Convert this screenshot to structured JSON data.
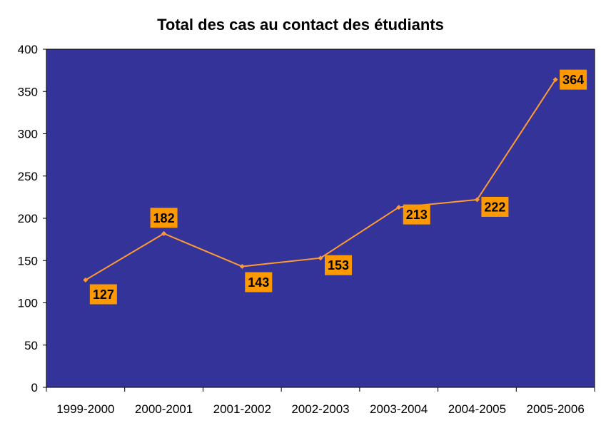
{
  "chart_data": {
    "type": "line",
    "title": "Total des cas au contact des étudiants",
    "categories": [
      "1999-2000",
      "2000-2001",
      "2001-2002",
      "2002-2003",
      "2003-2004",
      "2004-2005",
      "2005-2006"
    ],
    "series": [
      {
        "values": [
          127,
          182,
          143,
          153,
          213,
          222,
          364
        ]
      }
    ],
    "ylim": [
      0,
      400
    ],
    "yticks": [
      0,
      50,
      100,
      150,
      200,
      250,
      300,
      350,
      400
    ],
    "grid": false,
    "legend": "none",
    "colors": {
      "plot_background": "#333399",
      "line": "#FF9933",
      "label_background": "#FF9900",
      "axis": "#000000"
    }
  }
}
